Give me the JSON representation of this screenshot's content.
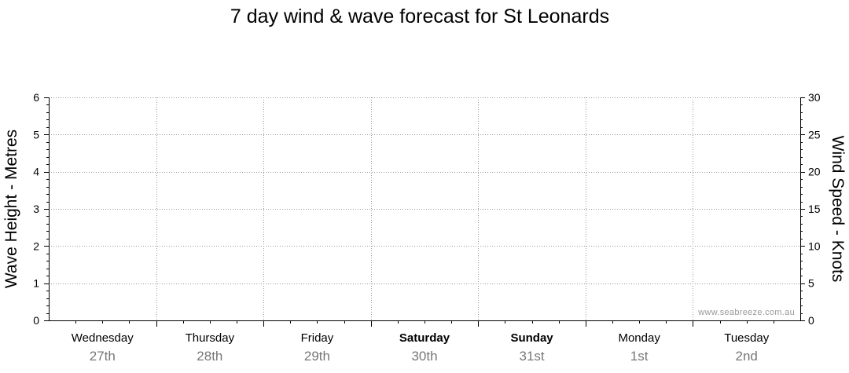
{
  "chart_data": {
    "type": "line",
    "title": "7 day wind & wave forecast for St Leonards",
    "ylabel_left": "Wave Height - Metres",
    "ylabel_right": "Wind Speed - Knots",
    "ylim_left": [
      0,
      6
    ],
    "ylim_right": [
      0,
      30
    ],
    "yticks_left": [
      "0",
      "1",
      "2",
      "3",
      "4",
      "5",
      "6"
    ],
    "yticks_right": [
      "0",
      "5",
      "10",
      "15",
      "20",
      "25",
      "30"
    ],
    "days": [
      {
        "name": "Wednesday",
        "date": "27th",
        "bold": false
      },
      {
        "name": "Thursday",
        "date": "28th",
        "bold": false
      },
      {
        "name": "Friday",
        "date": "29th",
        "bold": false
      },
      {
        "name": "Saturday",
        "date": "30th",
        "bold": true
      },
      {
        "name": "Sunday",
        "date": "31st",
        "bold": true
      },
      {
        "name": "Monday",
        "date": "1st",
        "bold": false
      },
      {
        "name": "Tuesday",
        "date": "2nd",
        "bold": false
      }
    ],
    "series": [],
    "grid": true,
    "watermark": "www.seabreeze.com.au",
    "colors": {
      "grid": "#999999",
      "axis": "#000000",
      "date_text": "#777777"
    }
  }
}
